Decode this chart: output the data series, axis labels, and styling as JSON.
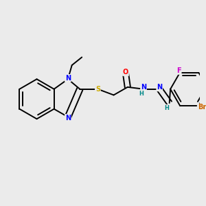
{
  "background_color": "#ebebeb",
  "bond_color": "#000000",
  "atom_colors": {
    "N": "#0000ff",
    "S": "#ccaa00",
    "O": "#ff0000",
    "F": "#cc00cc",
    "Br": "#cc6600",
    "H": "#008888",
    "C": "#000000"
  },
  "figsize": [
    3.0,
    3.0
  ],
  "dpi": 100
}
